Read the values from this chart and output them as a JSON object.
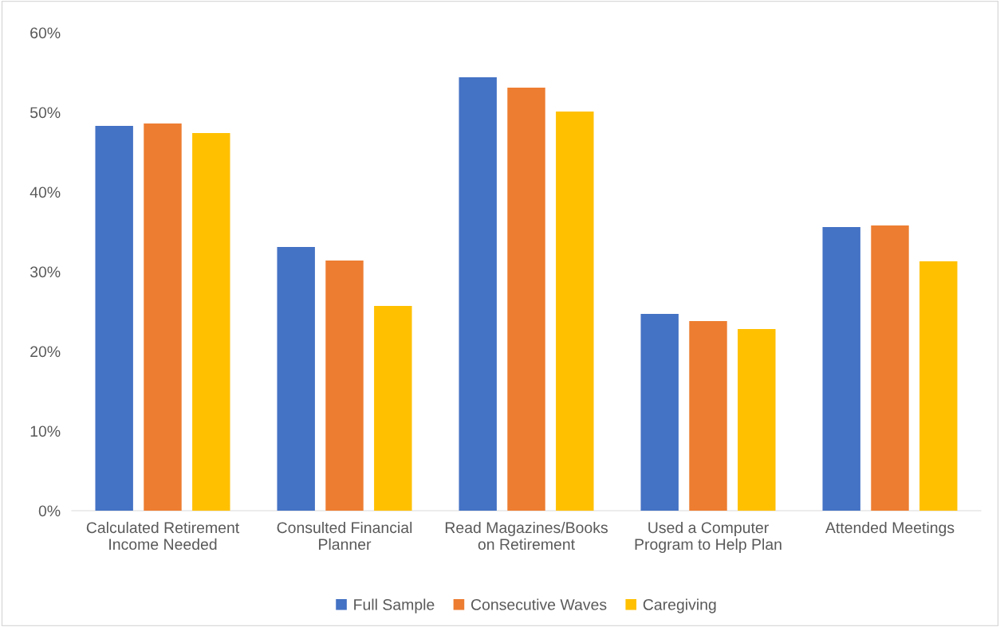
{
  "chart_data": {
    "type": "bar",
    "categories": [
      "Calculated Retirement\nIncome Needed",
      "Consulted Financial\nPlanner",
      "Read Magazines/Books\non Retirement",
      "Used a Computer\nProgram to Help Plan",
      "Attended Meetings"
    ],
    "series": [
      {
        "name": "Full Sample",
        "color": "#4472c4",
        "values": [
          48.3,
          33.1,
          54.4,
          24.7,
          35.6
        ]
      },
      {
        "name": "Consecutive Waves",
        "color": "#ed7d31",
        "values": [
          48.6,
          31.4,
          53.1,
          23.8,
          35.8
        ]
      },
      {
        "name": "Caregiving",
        "color": "#ffc000",
        "values": [
          47.4,
          25.7,
          50.1,
          22.8,
          31.3
        ]
      }
    ],
    "ylim": [
      0,
      60
    ],
    "yticks": [
      {
        "value": 0,
        "label": "0%"
      },
      {
        "value": 10,
        "label": "10%"
      },
      {
        "value": 20,
        "label": "20%"
      },
      {
        "value": 30,
        "label": "30%"
      },
      {
        "value": 40,
        "label": "40%"
      },
      {
        "value": 50,
        "label": "50%"
      },
      {
        "value": 60,
        "label": "60%"
      }
    ],
    "grid": false,
    "legend": "bottom"
  }
}
